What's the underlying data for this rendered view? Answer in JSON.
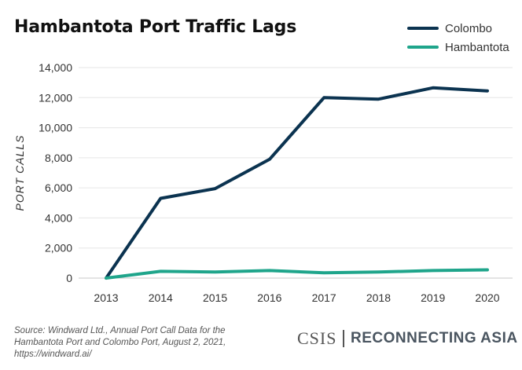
{
  "chart_data": {
    "type": "line",
    "title": "Hambantota Port Traffic Lags",
    "ylabel": "PORT CALLS",
    "xlabel": "",
    "x": [
      "2013",
      "2014",
      "2015",
      "2016",
      "2017",
      "2018",
      "2019",
      "2020"
    ],
    "yticks": [
      "0",
      "2,000",
      "4,000",
      "6,000",
      "8,000",
      "10,000",
      "12,000",
      "14,000"
    ],
    "ylim": [
      0,
      14000
    ],
    "grid": true,
    "legend_position": "top-right",
    "series": [
      {
        "name": "Colombo",
        "color": "#0b3350",
        "values": [
          0,
          5300,
          5950,
          7900,
          12000,
          11900,
          12650,
          12450
        ]
      },
      {
        "name": "Hambantota",
        "color": "#1fa58b",
        "values": [
          0,
          450,
          400,
          500,
          350,
          400,
          500,
          550
        ]
      }
    ]
  },
  "source": {
    "lines": [
      "Source: Windward Ltd., Annual Port Call Data for the",
      "Hambantota Port and Colombo Port,  August 2, 2021,",
      "https://windward.ai/"
    ]
  },
  "brand": {
    "org": "CSIS",
    "program_prefix": "RE",
    "program_rest": "CONNECTING ASIA"
  }
}
